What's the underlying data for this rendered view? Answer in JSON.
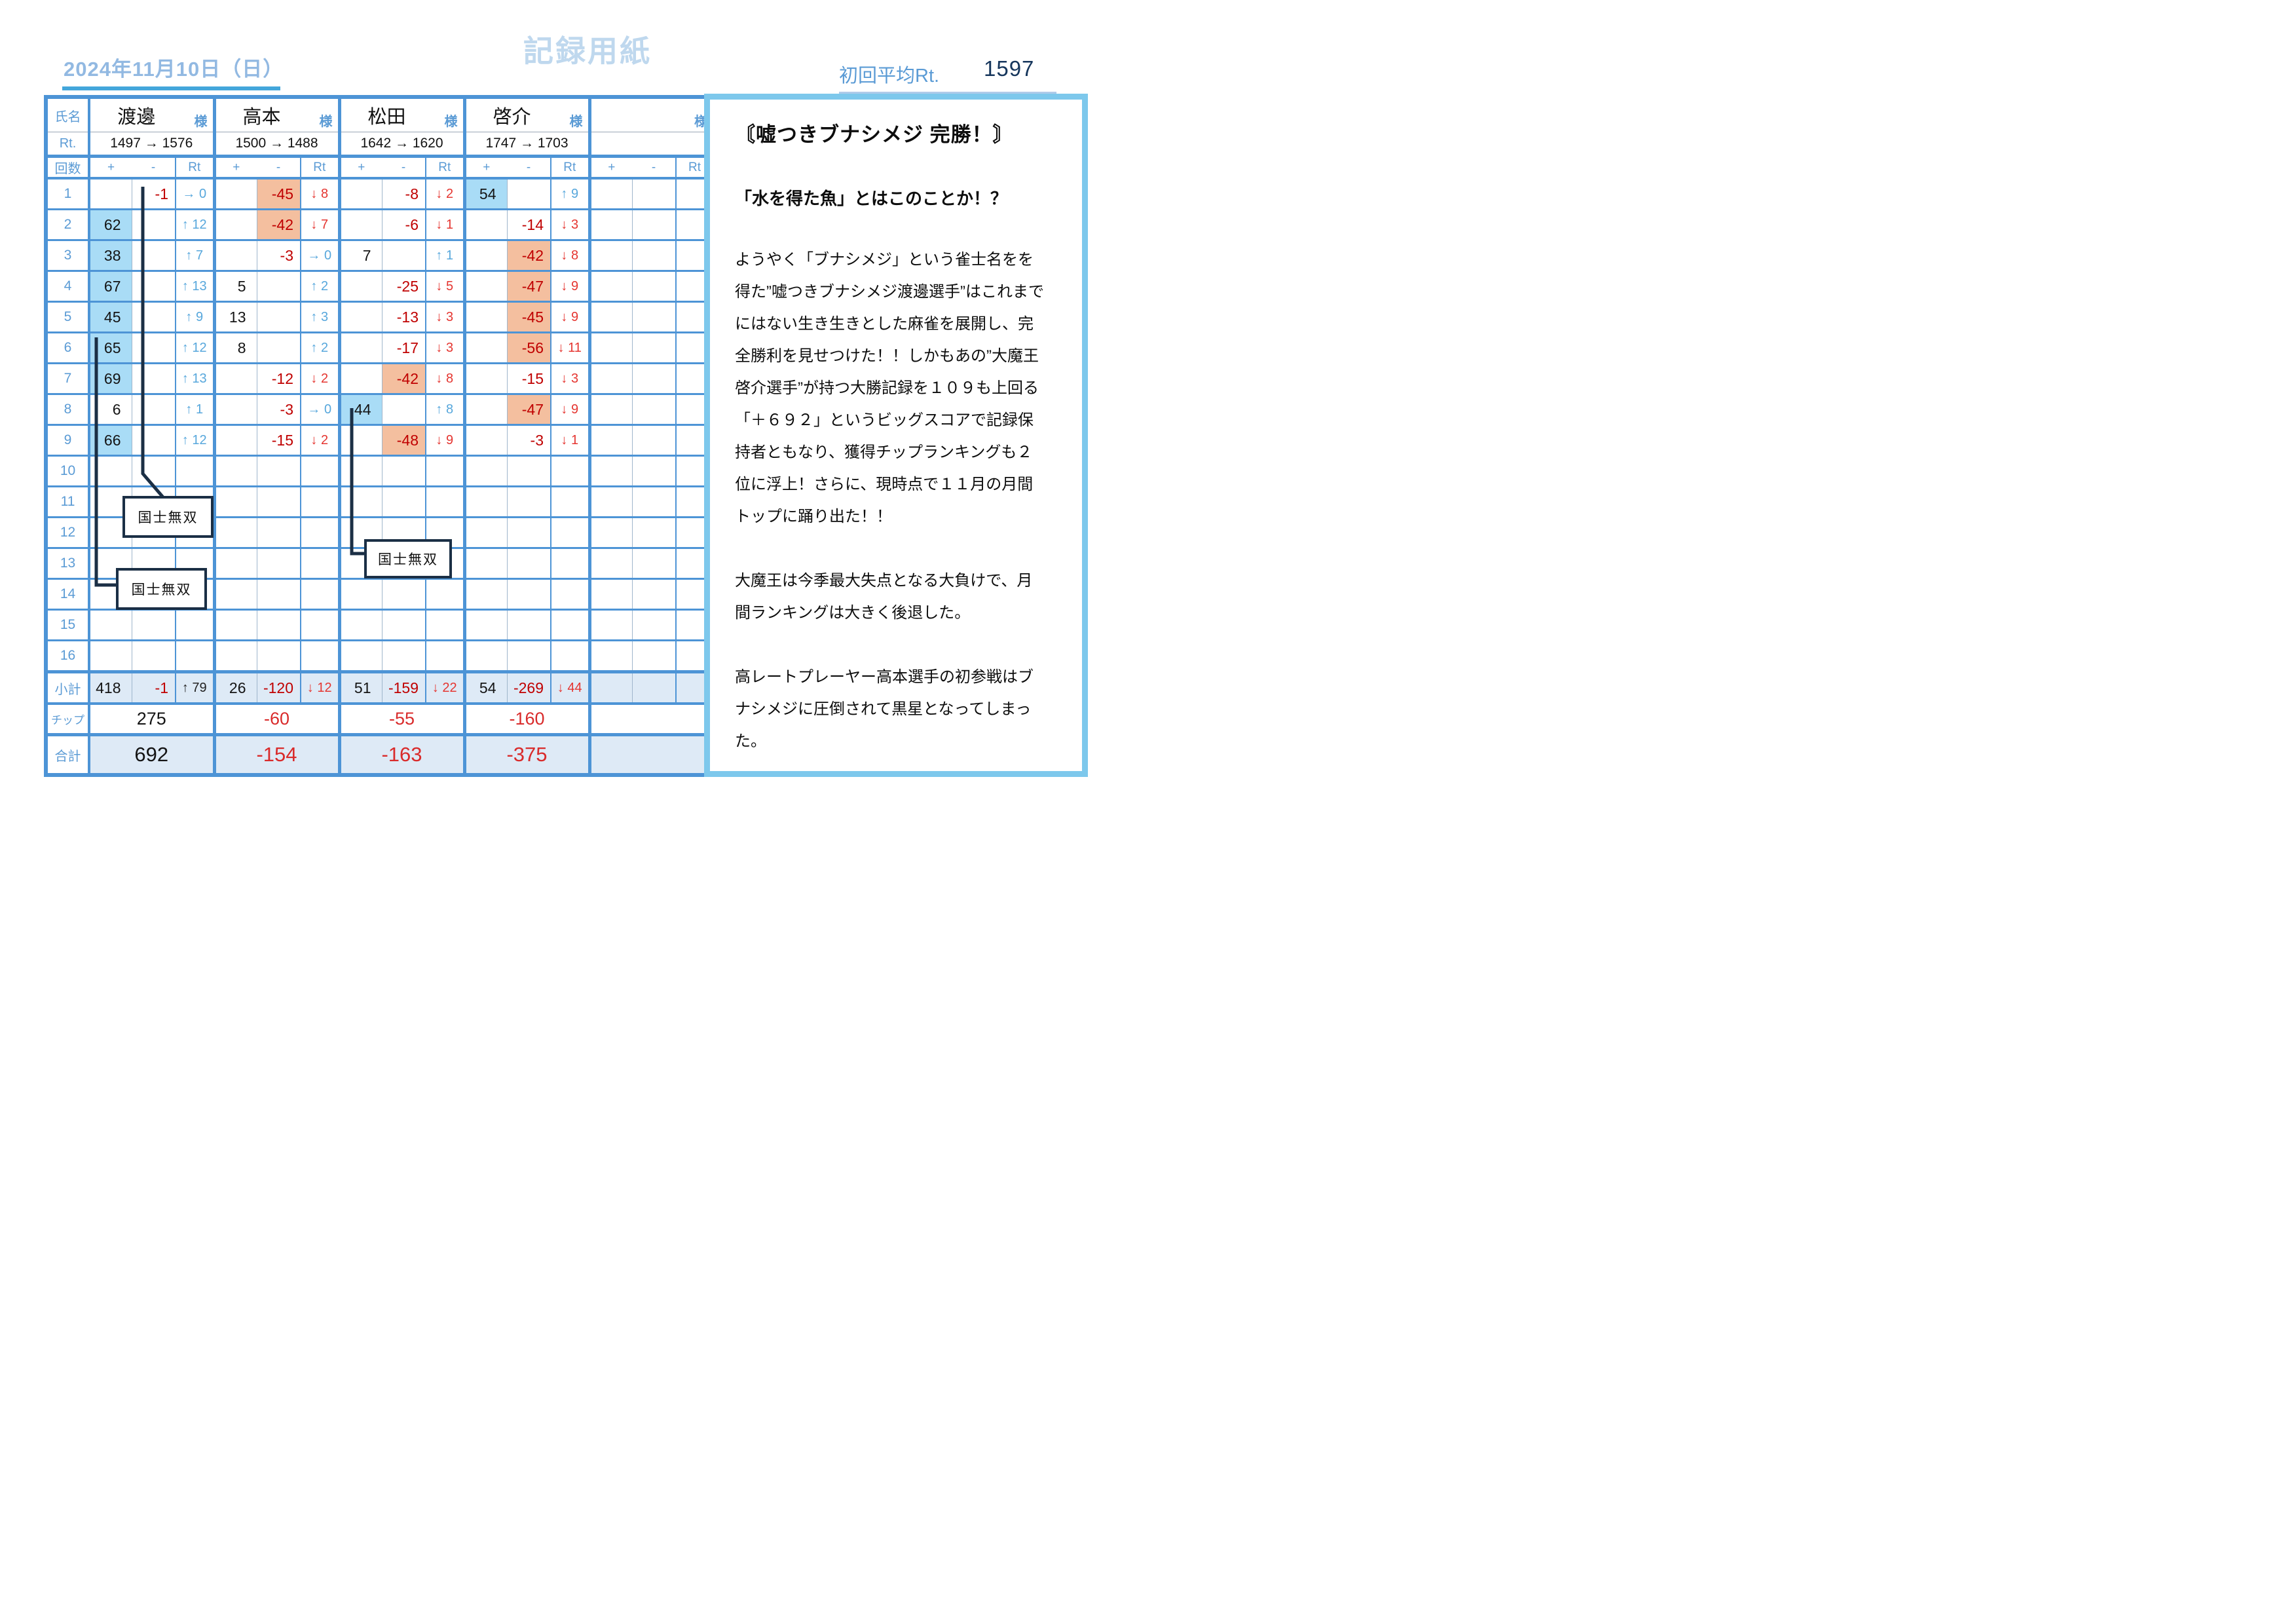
{
  "header": {
    "date": "2024年11月10日（日）",
    "title": "記録用紙",
    "avg_rt_label": "初回平均Rt.",
    "avg_rt_value": "1597"
  },
  "colors": {
    "accent_blue": "#4d94d6",
    "highlight_blue": "#a9dcf6",
    "highlight_orange": "#f4bf9f",
    "negative_red": "#c00000",
    "arrow_down_red": "#e53530",
    "arrow_up_blue": "#57a7dc"
  },
  "table": {
    "corner": {
      "name": "氏名",
      "rt": "Rt.",
      "rounds": "回数",
      "subtotal": "小計",
      "chips": "チップ",
      "total": "合計"
    },
    "col_headers": {
      "plus": "+",
      "minus": "-",
      "rt": "Rt"
    },
    "honorific": "様",
    "round_numbers": [
      "1",
      "2",
      "3",
      "4",
      "5",
      "6",
      "7",
      "8",
      "9",
      "10",
      "11",
      "12",
      "13",
      "14",
      "15",
      "16"
    ],
    "players": [
      {
        "name": "渡邊",
        "rt_change": "1497 → 1576",
        "rounds": [
          [
            "",
            "-1",
            "→ 0",
            ""
          ],
          [
            "62",
            "",
            "↑ 12",
            "p"
          ],
          [
            "38",
            "",
            "↑ 7",
            "p"
          ],
          [
            "67",
            "",
            "↑ 13",
            "p"
          ],
          [
            "45",
            "",
            "↑ 9",
            "p"
          ],
          [
            "65",
            "",
            "↑ 12",
            "p"
          ],
          [
            "69",
            "",
            "↑ 13",
            "p"
          ],
          [
            "6",
            "",
            "↑ 1",
            ""
          ],
          [
            "66",
            "",
            "↑ 12",
            "p"
          ],
          [
            "",
            "",
            "",
            ""
          ],
          [
            "",
            "",
            "",
            ""
          ],
          [
            "",
            "",
            "",
            ""
          ],
          [
            "",
            "",
            "",
            ""
          ],
          [
            "",
            "",
            "",
            ""
          ],
          [
            "",
            "",
            "",
            ""
          ],
          [
            "",
            "",
            "",
            ""
          ]
        ],
        "subtotal": [
          "418",
          "-1",
          "↑ 79"
        ],
        "subtotal_rt_dark": true,
        "chips": "275",
        "total": "692"
      },
      {
        "name": "高本",
        "rt_change": "1500 → 1488",
        "rounds": [
          [
            "",
            "-45",
            "↓ 8",
            "m"
          ],
          [
            "",
            "-42",
            "↓ 7",
            "m"
          ],
          [
            "",
            "-3",
            "→ 0",
            ""
          ],
          [
            "5",
            "",
            "↑ 2",
            ""
          ],
          [
            "13",
            "",
            "↑ 3",
            ""
          ],
          [
            "8",
            "",
            "↑ 2",
            ""
          ],
          [
            "",
            "-12",
            "↓ 2",
            ""
          ],
          [
            "",
            "-3",
            "→ 0",
            ""
          ],
          [
            "",
            "-15",
            "↓ 2",
            ""
          ],
          [
            "",
            "",
            "",
            ""
          ],
          [
            "",
            "",
            "",
            ""
          ],
          [
            "",
            "",
            "",
            ""
          ],
          [
            "",
            "",
            "",
            ""
          ],
          [
            "",
            "",
            "",
            ""
          ],
          [
            "",
            "",
            "",
            ""
          ],
          [
            "",
            "",
            "",
            ""
          ]
        ],
        "subtotal": [
          "26",
          "-120",
          "↓ 12"
        ],
        "subtotal_rt_dark": false,
        "chips": "-60",
        "total": "-154"
      },
      {
        "name": "松田",
        "rt_change": "1642 → 1620",
        "rounds": [
          [
            "",
            "-8",
            "↓ 2",
            ""
          ],
          [
            "",
            "-6",
            "↓ 1",
            ""
          ],
          [
            "7",
            "",
            "↑ 1",
            ""
          ],
          [
            "",
            "-25",
            "↓ 5",
            ""
          ],
          [
            "",
            "-13",
            "↓ 3",
            ""
          ],
          [
            "",
            "-17",
            "↓ 3",
            ""
          ],
          [
            "",
            "-42",
            "↓ 8",
            "m"
          ],
          [
            "44",
            "",
            "↑ 8",
            "p"
          ],
          [
            "",
            "-48",
            "↓ 9",
            "m"
          ],
          [
            "",
            "",
            "",
            ""
          ],
          [
            "",
            "",
            "",
            ""
          ],
          [
            "",
            "",
            "",
            ""
          ],
          [
            "",
            "",
            "",
            ""
          ],
          [
            "",
            "",
            "",
            ""
          ],
          [
            "",
            "",
            "",
            ""
          ],
          [
            "",
            "",
            "",
            ""
          ]
        ],
        "subtotal": [
          "51",
          "-159",
          "↓ 22"
        ],
        "subtotal_rt_dark": false,
        "chips": "-55",
        "total": "-163"
      },
      {
        "name": "啓介",
        "rt_change": "1747 → 1703",
        "rounds": [
          [
            "54",
            "",
            "↑ 9",
            "p"
          ],
          [
            "",
            "-14",
            "↓ 3",
            ""
          ],
          [
            "",
            "-42",
            "↓ 8",
            "m"
          ],
          [
            "",
            "-47",
            "↓ 9",
            "m"
          ],
          [
            "",
            "-45",
            "↓ 9",
            "m"
          ],
          [
            "",
            "-56",
            "↓ 11",
            "m"
          ],
          [
            "",
            "-15",
            "↓ 3",
            ""
          ],
          [
            "",
            "-47",
            "↓ 9",
            "m"
          ],
          [
            "",
            "-3",
            "↓ 1",
            ""
          ],
          [
            "",
            "",
            "",
            ""
          ],
          [
            "",
            "",
            "",
            ""
          ],
          [
            "",
            "",
            "",
            ""
          ],
          [
            "",
            "",
            "",
            ""
          ],
          [
            "",
            "",
            "",
            ""
          ],
          [
            "",
            "",
            "",
            ""
          ],
          [
            "",
            "",
            "",
            ""
          ]
        ],
        "subtotal": [
          "54",
          "-269",
          "↓ 44"
        ],
        "subtotal_rt_dark": false,
        "chips": "-160",
        "total": "-375"
      },
      {
        "name": "",
        "rt_change": "",
        "rounds": [
          [
            "",
            "",
            "",
            ""
          ],
          [
            "",
            "",
            "",
            ""
          ],
          [
            "",
            "",
            "",
            ""
          ],
          [
            "",
            "",
            "",
            ""
          ],
          [
            "",
            "",
            "",
            ""
          ],
          [
            "",
            "",
            "",
            ""
          ],
          [
            "",
            "",
            "",
            ""
          ],
          [
            "",
            "",
            "",
            ""
          ],
          [
            "",
            "",
            "",
            ""
          ],
          [
            "",
            "",
            "",
            ""
          ],
          [
            "",
            "",
            "",
            ""
          ],
          [
            "",
            "",
            "",
            ""
          ],
          [
            "",
            "",
            "",
            ""
          ],
          [
            "",
            "",
            "",
            ""
          ],
          [
            "",
            "",
            "",
            ""
          ],
          [
            "",
            "",
            "",
            ""
          ]
        ],
        "subtotal": [
          "",
          "",
          ""
        ],
        "subtotal_rt_dark": false,
        "chips": "",
        "total": ""
      }
    ]
  },
  "annotations": {
    "yakuman": "国士無双"
  },
  "panel": {
    "title": "〘嘘つきブナシメジ 完勝！〙",
    "subtitle": "「水を得た魚」とはこのことか！？",
    "paragraphs": [
      "ようやく「ブナシメジ」という雀士名をを得た”嘘つきブナシメジ渡邊選手”はこれまでにはない生き生きとした麻雀を展開し、完全勝利を見せつけた！！しかもあの”大魔王啓介選手”が持つ大勝記録を１０９も上回る「＋６９２」というビッグスコアで記録保持者ともなり、獲得チップランキングも２位に浮上！さらに、現時点で１１月の月間トップに踊り出た！！",
      "大魔王は今季最大失点となる大負けで、月間ランキングは大きく後退した。",
      "高レートプレーヤー高本選手の初参戦はブナシメジに圧倒されて黒星となってしまった。"
    ]
  }
}
